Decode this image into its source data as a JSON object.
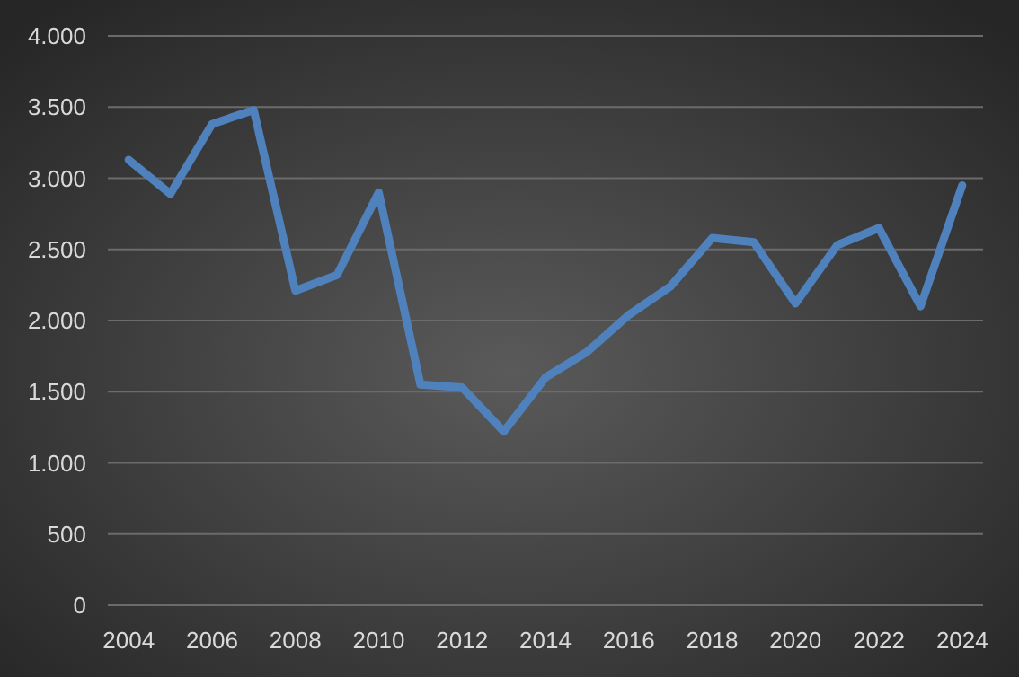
{
  "chart_data": {
    "type": "line",
    "categories": [
      "2004",
      null,
      "2006",
      null,
      "2008",
      null,
      "2010",
      null,
      "2012",
      null,
      "2014",
      null,
      "2016",
      null,
      "2018",
      null,
      "2020",
      null,
      "2022",
      null,
      "2024"
    ],
    "series": [
      {
        "color": "#4f81bd",
        "values": [
          3130,
          2890,
          3380,
          3480,
          2210,
          2320,
          2900,
          1550,
          1530,
          1220,
          1600,
          1780,
          2040,
          2240,
          2580,
          2550,
          2120,
          2530,
          2650,
          2100,
          2950
        ]
      }
    ],
    "ylim": [
      0,
      4000
    ],
    "yticks": [
      0,
      {
        "value": 500,
        "label": "500"
      },
      {
        "value": 1000,
        "label": "1.000"
      },
      {
        "value": 1500,
        "label": "1.500"
      },
      {
        "value": 2000,
        "label": "2.000"
      },
      {
        "value": 2500,
        "label": "2.500"
      },
      {
        "value": 3000,
        "label": "3.000"
      },
      {
        "value": 3500,
        "label": "3.500"
      },
      {
        "value": 4000,
        "label": "4.000"
      }
    ],
    "grid": "y",
    "marker": "none",
    "line_style": "solid"
  }
}
